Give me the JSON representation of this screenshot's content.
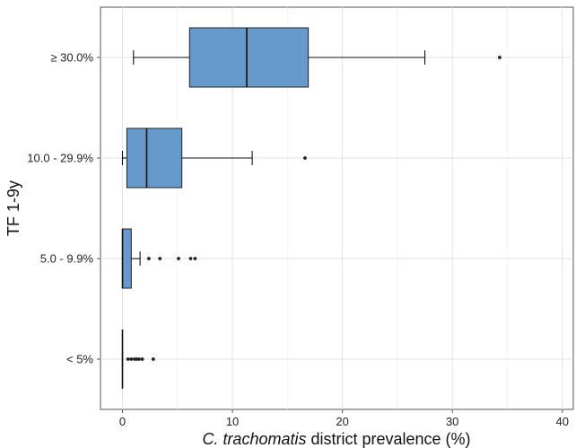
{
  "chart_data": {
    "type": "boxplot",
    "orientation": "horizontal",
    "xlabel_italic": "C. trachomatis",
    "xlabel_rest": " district prevalence (%)",
    "ylabel": "TF 1-9y",
    "xlim": [
      -2,
      41
    ],
    "xticks": [
      0,
      10,
      20,
      30,
      40
    ],
    "grid": true,
    "box_color": "#6699cc",
    "categories": [
      "≥ 30.0%",
      "10.0 - 29.9%",
      "5.0 - 9.9%",
      "< 5%"
    ],
    "boxes": [
      {
        "category": "≥ 30.0%",
        "whisker_low": 1.0,
        "q1": 6.1,
        "median": 11.3,
        "q3": 16.9,
        "whisker_high": 27.5,
        "outliers": [
          34.3
        ]
      },
      {
        "category": "10.0 - 29.9%",
        "whisker_low": 0.0,
        "q1": 0.4,
        "median": 2.2,
        "q3": 5.4,
        "whisker_high": 11.8,
        "outliers": [
          16.6
        ]
      },
      {
        "category": "5.0 - 9.9%",
        "whisker_low": 0.0,
        "q1": 0.0,
        "median": 0.0,
        "q3": 0.8,
        "whisker_high": 1.6,
        "outliers": [
          2.4,
          3.4,
          5.1,
          6.2,
          6.6
        ]
      },
      {
        "category": "< 5%",
        "whisker_low": 0.0,
        "q1": 0.0,
        "median": 0.0,
        "q3": 0.0,
        "whisker_high": 0.0,
        "outliers": [
          0.5,
          0.8,
          1.1,
          1.3,
          1.5,
          1.8,
          2.8
        ]
      }
    ]
  }
}
